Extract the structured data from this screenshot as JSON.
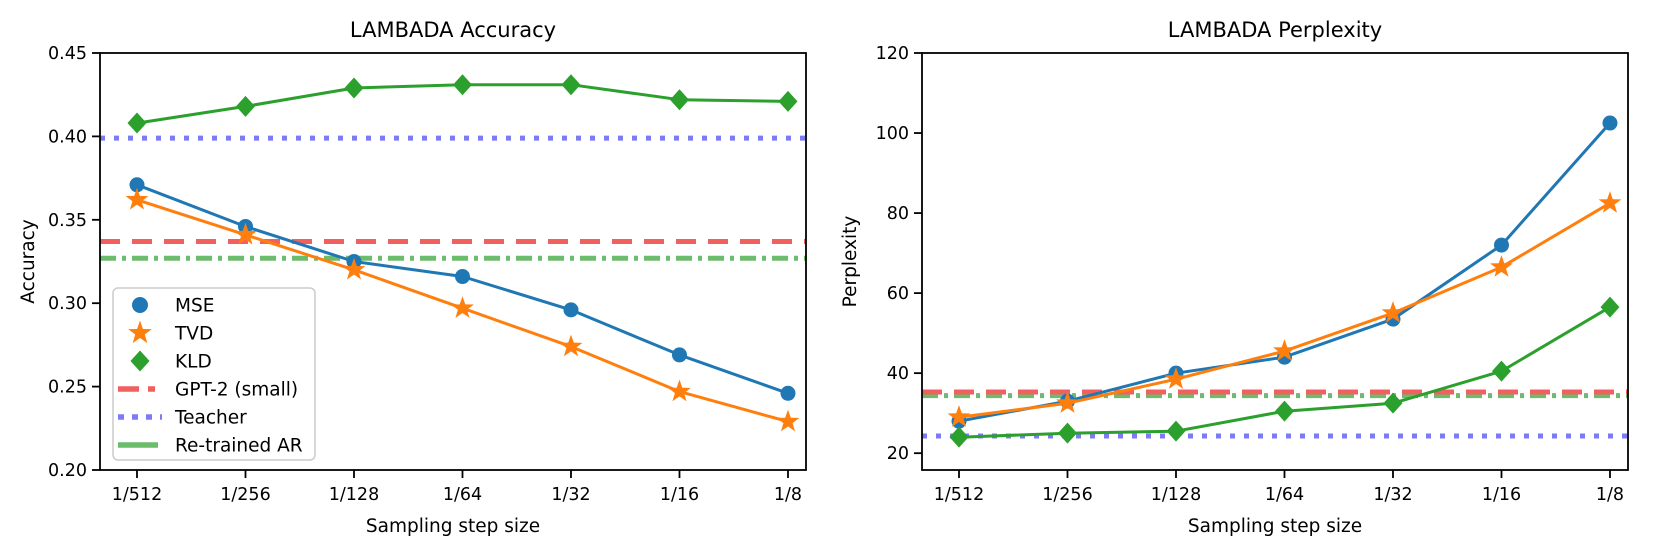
{
  "figure": {
    "background": "#ffffff"
  },
  "colors": {
    "mse": "#1f77b4",
    "tvd": "#ff7f0e",
    "kld": "#2ca02c",
    "gpt2": "#f25f5f",
    "teacher": "#7b7bf7",
    "retrained": "#6bbc6b",
    "axis": "#000000",
    "legend_border": "#cccccc"
  },
  "legend": {
    "items": [
      {
        "label": "MSE",
        "key": "mse",
        "swatch": "circle-marker"
      },
      {
        "label": "TVD",
        "key": "tvd",
        "swatch": "star-marker"
      },
      {
        "label": "KLD",
        "key": "kld",
        "swatch": "diamond-marker"
      },
      {
        "label": "GPT-2 (small)",
        "key": "gpt2",
        "swatch": "dashed-line"
      },
      {
        "label": "Teacher",
        "key": "teacher",
        "swatch": "dotted-line"
      },
      {
        "label": "Re-trained AR",
        "key": "retrained",
        "swatch": "dashdot-line"
      }
    ]
  },
  "chart_data": [
    {
      "type": "line",
      "title": "LAMBADA Accuracy",
      "xlabel": "Sampling step size",
      "ylabel": "Accuracy",
      "categories": [
        "1/512",
        "1/256",
        "1/128",
        "1/64",
        "1/32",
        "1/16",
        "1/8"
      ],
      "ylim": [
        0.2,
        0.45
      ],
      "yticks": [
        0.2,
        0.25,
        0.3,
        0.35,
        0.4,
        0.45
      ],
      "ytick_labels": [
        "0.20",
        "0.25",
        "0.30",
        "0.35",
        "0.40",
        "0.45"
      ],
      "grid": false,
      "legend_position": "lower-left",
      "series": [
        {
          "name": "MSE",
          "key": "mse",
          "marker": "circle",
          "values": [
            0.371,
            0.346,
            0.325,
            0.316,
            0.296,
            0.269,
            0.246
          ]
        },
        {
          "name": "TVD",
          "key": "tvd",
          "marker": "star",
          "values": [
            0.362,
            0.341,
            0.32,
            0.297,
            0.274,
            0.247,
            0.229
          ]
        },
        {
          "name": "KLD",
          "key": "kld",
          "marker": "diamond",
          "values": [
            0.408,
            0.418,
            0.429,
            0.431,
            0.431,
            0.422,
            0.421
          ]
        }
      ],
      "hlines": [
        {
          "name": "Teacher",
          "key": "teacher",
          "style": "dotted",
          "value": 0.399
        },
        {
          "name": "Re-trained AR",
          "key": "retrained",
          "style": "dashdot",
          "value": 0.327
        },
        {
          "name": "GPT-2 (small)",
          "key": "gpt2",
          "style": "dashed",
          "value": 0.337
        }
      ],
      "show_legend": true
    },
    {
      "type": "line",
      "title": "LAMBADA Perplexity",
      "xlabel": "Sampling step size",
      "ylabel": "Perplexity",
      "categories": [
        "1/512",
        "1/256",
        "1/128",
        "1/64",
        "1/32",
        "1/16",
        "1/8"
      ],
      "ylim": [
        15.8,
        120
      ],
      "yticks": [
        20,
        40,
        60,
        80,
        100,
        120
      ],
      "ytick_labels": [
        "20",
        "40",
        "60",
        "80",
        "100",
        "120"
      ],
      "grid": false,
      "legend_position": "none",
      "series": [
        {
          "name": "MSE",
          "key": "mse",
          "marker": "circle",
          "values": [
            28,
            33,
            40,
            44,
            53.5,
            72,
            102.5
          ]
        },
        {
          "name": "TVD",
          "key": "tvd",
          "marker": "star",
          "values": [
            29,
            32.5,
            38.5,
            45.5,
            55,
            66.5,
            82.5
          ]
        },
        {
          "name": "KLD",
          "key": "kld",
          "marker": "diamond",
          "values": [
            24,
            25,
            25.5,
            30.5,
            32.5,
            40.5,
            56.5
          ]
        }
      ],
      "hlines": [
        {
          "name": "Teacher",
          "key": "teacher",
          "style": "dotted",
          "value": 24.3
        },
        {
          "name": "Re-trained AR",
          "key": "retrained",
          "style": "dashdot",
          "value": 34.4
        },
        {
          "name": "GPT-2 (small)",
          "key": "gpt2",
          "style": "dashed",
          "value": 35.3
        }
      ],
      "show_legend": false
    }
  ]
}
